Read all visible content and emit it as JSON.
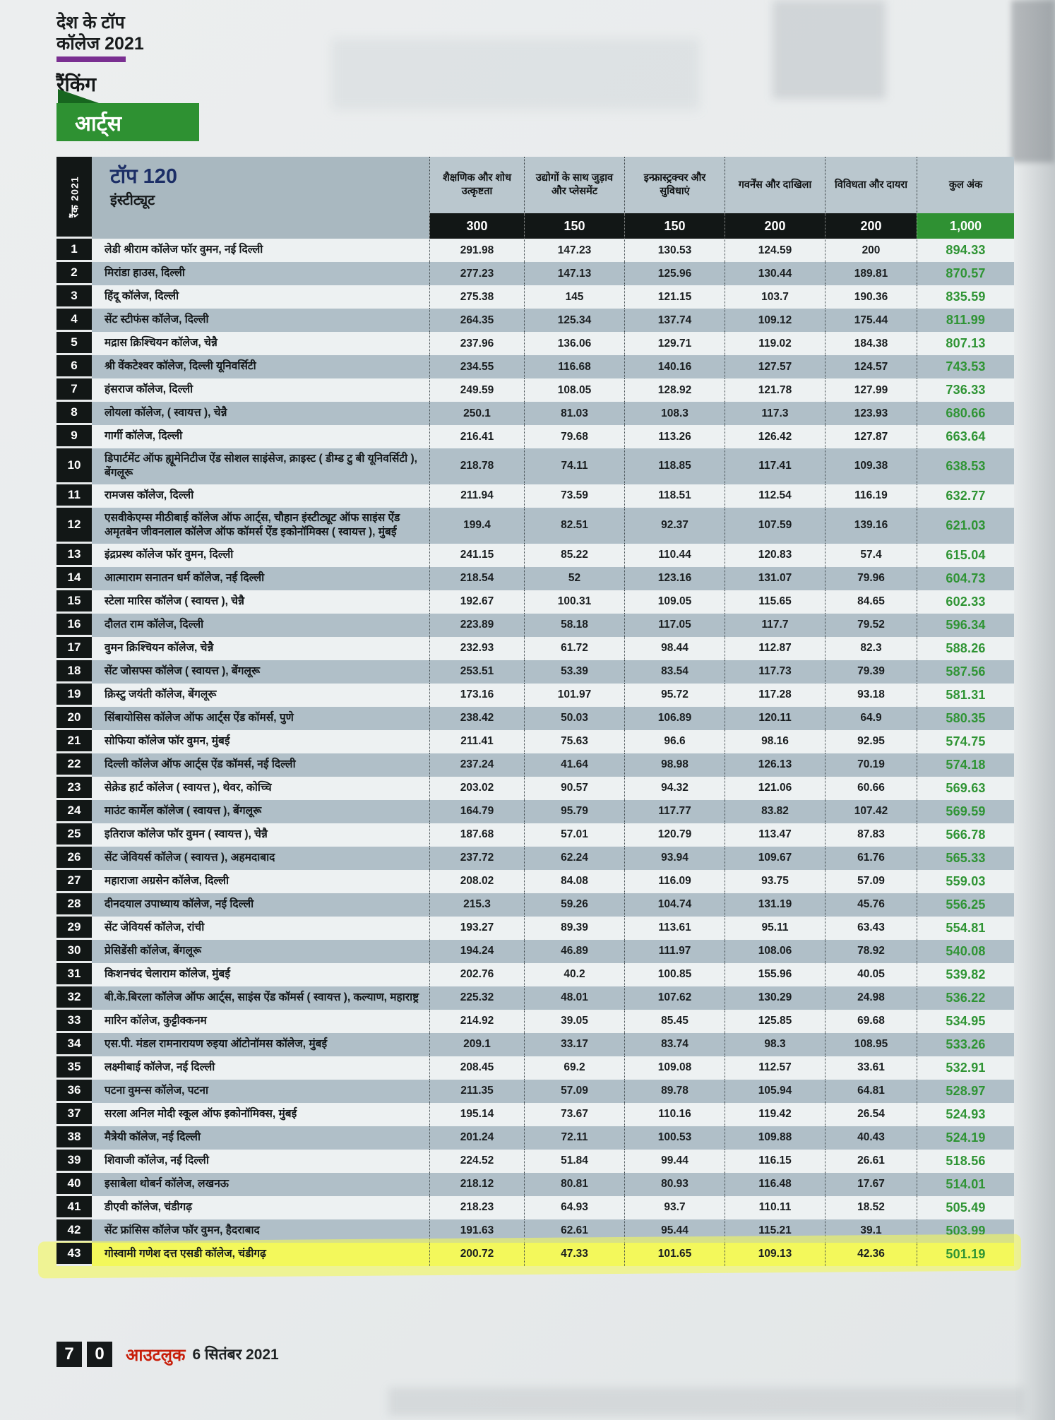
{
  "masthead": {
    "line1": "देश के टॉप",
    "line2": "कॉलेज 2021",
    "line3": "रैंकिंग"
  },
  "category_ribbon": {
    "label": "आर्ट्स"
  },
  "table": {
    "rank_strip_label": "रैंक 2021",
    "title": "टॉप 120",
    "subtitle": "इंस्टीट्यूट",
    "columns": [
      {
        "label": "शैक्षणिक और शोध उत्कृष्टता",
        "weight": "300"
      },
      {
        "label": "उद्योगों के साथ जुड़ाव और प्लेसमेंट",
        "weight": "150"
      },
      {
        "label": "इन्फ्रास्ट्रक्चर और सुविधाएं",
        "weight": "150"
      },
      {
        "label": "गवर्नेंस और दाखिला",
        "weight": "200"
      },
      {
        "label": "विविधता और दायरा",
        "weight": "200"
      },
      {
        "label": "कुल अंक",
        "weight": "1,000"
      }
    ],
    "rows": [
      {
        "rank": "1",
        "name": "लेडी श्रीराम कॉलेज फॉर वुमन, नई दिल्ली",
        "scores": [
          "291.98",
          "147.23",
          "130.53",
          "124.59",
          "200"
        ],
        "total": "894.33",
        "highlighted": false
      },
      {
        "rank": "2",
        "name": "मिरांडा हाउस, दिल्ली",
        "scores": [
          "277.23",
          "147.13",
          "125.96",
          "130.44",
          "189.81"
        ],
        "total": "870.57",
        "highlighted": false
      },
      {
        "rank": "3",
        "name": "हिंदू कॉलेज, दिल्ली",
        "scores": [
          "275.38",
          "145",
          "121.15",
          "103.7",
          "190.36"
        ],
        "total": "835.59",
        "highlighted": false
      },
      {
        "rank": "4",
        "name": "सेंट स्टीफंस कॉलेज, दिल्ली",
        "scores": [
          "264.35",
          "125.34",
          "137.74",
          "109.12",
          "175.44"
        ],
        "total": "811.99",
        "highlighted": false
      },
      {
        "rank": "5",
        "name": "मद्रास क्रिश्चियन कॉलेज, चेन्नै",
        "scores": [
          "237.96",
          "136.06",
          "129.71",
          "119.02",
          "184.38"
        ],
        "total": "807.13",
        "highlighted": false
      },
      {
        "rank": "6",
        "name": "श्री वेंकटेश्वर कॉलेज, दिल्ली यूनिवर्सिटी",
        "scores": [
          "234.55",
          "116.68",
          "140.16",
          "127.57",
          "124.57"
        ],
        "total": "743.53",
        "highlighted": false
      },
      {
        "rank": "7",
        "name": "हंसराज कॉलेज, दिल्ली",
        "scores": [
          "249.59",
          "108.05",
          "128.92",
          "121.78",
          "127.99"
        ],
        "total": "736.33",
        "highlighted": false
      },
      {
        "rank": "8",
        "name": "लोयला कॉलेज, ( स्वायत्त ), चेन्नै",
        "scores": [
          "250.1",
          "81.03",
          "108.3",
          "117.3",
          "123.93"
        ],
        "total": "680.66",
        "highlighted": false
      },
      {
        "rank": "9",
        "name": "गार्गी कॉलेज, दिल्ली",
        "scores": [
          "216.41",
          "79.68",
          "113.26",
          "126.42",
          "127.87"
        ],
        "total": "663.64",
        "highlighted": false
      },
      {
        "rank": "10",
        "name": "डिपार्टमेंट ऑफ ह्यूमेनिटीज ऐंड सोशल साइंसेज, क्राइस्ट ( डीम्ड टु बी यूनिवर्सिटी ), बेंगलूरू",
        "scores": [
          "218.78",
          "74.11",
          "118.85",
          "117.41",
          "109.38"
        ],
        "total": "638.53",
        "highlighted": false
      },
      {
        "rank": "11",
        "name": "रामजस कॉलेज, दिल्ली",
        "scores": [
          "211.94",
          "73.59",
          "118.51",
          "112.54",
          "116.19"
        ],
        "total": "632.77",
        "highlighted": false
      },
      {
        "rank": "12",
        "name": "एसवीकेएम्स मीठीबाई कॉलेज ऑफ आर्ट्स, चौहान इंस्टीट्यूट ऑफ साइंस ऐंड अमृतबेन जीवनलाल कॉलेज ऑफ कॉमर्स ऐंड इकोनॉमिक्स ( स्वायत्त ), मुंबई",
        "scores": [
          "199.4",
          "82.51",
          "92.37",
          "107.59",
          "139.16"
        ],
        "total": "621.03",
        "highlighted": false
      },
      {
        "rank": "13",
        "name": "इंद्रप्रस्थ कॉलेज फॉर वुमन, दिल्ली",
        "scores": [
          "241.15",
          "85.22",
          "110.44",
          "120.83",
          "57.4"
        ],
        "total": "615.04",
        "highlighted": false
      },
      {
        "rank": "14",
        "name": "आत्माराम सनातन धर्म कॉलेज, नई दिल्ली",
        "scores": [
          "218.54",
          "52",
          "123.16",
          "131.07",
          "79.96"
        ],
        "total": "604.73",
        "highlighted": false
      },
      {
        "rank": "15",
        "name": "स्टेला मारिस कॉलेज ( स्वायत्त ), चेन्नै",
        "scores": [
          "192.67",
          "100.31",
          "109.05",
          "115.65",
          "84.65"
        ],
        "total": "602.33",
        "highlighted": false
      },
      {
        "rank": "16",
        "name": "दौलत राम कॉलेज, दिल्ली",
        "scores": [
          "223.89",
          "58.18",
          "117.05",
          "117.7",
          "79.52"
        ],
        "total": "596.34",
        "highlighted": false
      },
      {
        "rank": "17",
        "name": "वुमन क्रिश्चियन कॉलेज, चेन्नै",
        "scores": [
          "232.93",
          "61.72",
          "98.44",
          "112.87",
          "82.3"
        ],
        "total": "588.26",
        "highlighted": false
      },
      {
        "rank": "18",
        "name": "सेंट जोसफ्स कॉलेज ( स्वायत्त ), बेंगलूरू",
        "scores": [
          "253.51",
          "53.39",
          "83.54",
          "117.73",
          "79.39"
        ],
        "total": "587.56",
        "highlighted": false
      },
      {
        "rank": "19",
        "name": "क्रिस्टु जयंती कॉलेज, बेंगलूरू",
        "scores": [
          "173.16",
          "101.97",
          "95.72",
          "117.28",
          "93.18"
        ],
        "total": "581.31",
        "highlighted": false
      },
      {
        "rank": "20",
        "name": "सिंबायोसिस कॉलेज ऑफ आर्ट्स ऐंड कॉमर्स, पुणे",
        "scores": [
          "238.42",
          "50.03",
          "106.89",
          "120.11",
          "64.9"
        ],
        "total": "580.35",
        "highlighted": false
      },
      {
        "rank": "21",
        "name": "सोफिया कॉलेज फॉर वुमन, मुंबई",
        "scores": [
          "211.41",
          "75.63",
          "96.6",
          "98.16",
          "92.95"
        ],
        "total": "574.75",
        "highlighted": false
      },
      {
        "rank": "22",
        "name": "दिल्ली कॉलेज ऑफ आर्ट्स ऐंड कॉमर्स, नई दिल्ली",
        "scores": [
          "237.24",
          "41.64",
          "98.98",
          "126.13",
          "70.19"
        ],
        "total": "574.18",
        "highlighted": false
      },
      {
        "rank": "23",
        "name": "सेक्रेड हार्ट कॉलेज ( स्वायत्त ), थेवर, कोच्चि",
        "scores": [
          "203.02",
          "90.57",
          "94.32",
          "121.06",
          "60.66"
        ],
        "total": "569.63",
        "highlighted": false
      },
      {
        "rank": "24",
        "name": "माउंट कार्मेल कॉलेज ( स्वायत्त ), बेंगलूरू",
        "scores": [
          "164.79",
          "95.79",
          "117.77",
          "83.82",
          "107.42"
        ],
        "total": "569.59",
        "highlighted": false
      },
      {
        "rank": "25",
        "name": "इतिराज कॉलेज फॉर वुमन ( स्वायत्त ), चेन्नै",
        "scores": [
          "187.68",
          "57.01",
          "120.79",
          "113.47",
          "87.83"
        ],
        "total": "566.78",
        "highlighted": false
      },
      {
        "rank": "26",
        "name": "सेंट जेवियर्स कॉलेज ( स्वायत्त ), अहमदाबाद",
        "scores": [
          "237.72",
          "62.24",
          "93.94",
          "109.67",
          "61.76"
        ],
        "total": "565.33",
        "highlighted": false
      },
      {
        "rank": "27",
        "name": "महाराजा अग्रसेन कॉलेज, दिल्ली",
        "scores": [
          "208.02",
          "84.08",
          "116.09",
          "93.75",
          "57.09"
        ],
        "total": "559.03",
        "highlighted": false
      },
      {
        "rank": "28",
        "name": "दीनदयाल उपाध्याय कॉलेज, नई दिल्ली",
        "scores": [
          "215.3",
          "59.26",
          "104.74",
          "131.19",
          "45.76"
        ],
        "total": "556.25",
        "highlighted": false
      },
      {
        "rank": "29",
        "name": "सेंट जेवियर्स कॉलेज, रांची",
        "scores": [
          "193.27",
          "89.39",
          "113.61",
          "95.11",
          "63.43"
        ],
        "total": "554.81",
        "highlighted": false
      },
      {
        "rank": "30",
        "name": "प्रेसिडेंसी कॉलेज, बेंगलूरू",
        "scores": [
          "194.24",
          "46.89",
          "111.97",
          "108.06",
          "78.92"
        ],
        "total": "540.08",
        "highlighted": false
      },
      {
        "rank": "31",
        "name": "किशनचंद चेलाराम कॉलेज, मुंबई",
        "scores": [
          "202.76",
          "40.2",
          "100.85",
          "155.96",
          "40.05"
        ],
        "total": "539.82",
        "highlighted": false
      },
      {
        "rank": "32",
        "name": "बी.के.बिरला कॉलेज ऑफ आर्ट्स, साइंस ऐंड कॉमर्स ( स्वायत्त ), कल्याण, महाराष्ट्र",
        "scores": [
          "225.32",
          "48.01",
          "107.62",
          "130.29",
          "24.98"
        ],
        "total": "536.22",
        "highlighted": false
      },
      {
        "rank": "33",
        "name": "मारिन कॉलेज, कुट्टीक्कनम",
        "scores": [
          "214.92",
          "39.05",
          "85.45",
          "125.85",
          "69.68"
        ],
        "total": "534.95",
        "highlighted": false
      },
      {
        "rank": "34",
        "name": "एस.पी. मंडल रामनारायण रुइया ऑटोनॉमस कॉलेज, मुंबई",
        "scores": [
          "209.1",
          "33.17",
          "83.74",
          "98.3",
          "108.95"
        ],
        "total": "533.26",
        "highlighted": false
      },
      {
        "rank": "35",
        "name": "लक्ष्मीबाई कॉलेज, नई दिल्ली",
        "scores": [
          "208.45",
          "69.2",
          "109.08",
          "112.57",
          "33.61"
        ],
        "total": "532.91",
        "highlighted": false
      },
      {
        "rank": "36",
        "name": "पटना वुमन्स कॉलेज, पटना",
        "scores": [
          "211.35",
          "57.09",
          "89.78",
          "105.94",
          "64.81"
        ],
        "total": "528.97",
        "highlighted": false
      },
      {
        "rank": "37",
        "name": "सरला अनिल मोदी स्कूल ऑफ इकोनॉमिक्स, मुंबई",
        "scores": [
          "195.14",
          "73.67",
          "110.16",
          "119.42",
          "26.54"
        ],
        "total": "524.93",
        "highlighted": false
      },
      {
        "rank": "38",
        "name": "मैत्रेयी कॉलेज, नई दिल्ली",
        "scores": [
          "201.24",
          "72.11",
          "100.53",
          "109.88",
          "40.43"
        ],
        "total": "524.19",
        "highlighted": false
      },
      {
        "rank": "39",
        "name": "शिवाजी कॉलेज, नई दिल्ली",
        "scores": [
          "224.52",
          "51.84",
          "99.44",
          "116.15",
          "26.61"
        ],
        "total": "518.56",
        "highlighted": false
      },
      {
        "rank": "40",
        "name": "इसाबेला थोबर्न कॉलेज, लखनऊ",
        "scores": [
          "218.12",
          "80.81",
          "80.93",
          "116.48",
          "17.67"
        ],
        "total": "514.01",
        "highlighted": false
      },
      {
        "rank": "41",
        "name": "डीएवी कॉलेज, चंडीगढ़",
        "scores": [
          "218.23",
          "64.93",
          "93.7",
          "110.11",
          "18.52"
        ],
        "total": "505.49",
        "highlighted": false
      },
      {
        "rank": "42",
        "name": "सेंट फ्रांसिस कॉलेज फॉर वुमन, हैदराबाद",
        "scores": [
          "191.63",
          "62.61",
          "95.44",
          "115.21",
          "39.1"
        ],
        "total": "503.99",
        "highlighted": false
      },
      {
        "rank": "43",
        "name": "गोस्वामी गणेश दत्त एसडी कॉलेज, चंडीगढ़",
        "scores": [
          "200.72",
          "47.33",
          "101.65",
          "109.13",
          "42.36"
        ],
        "total": "501.19",
        "highlighted": true
      }
    ]
  },
  "footer": {
    "page_digits": [
      "7",
      "0"
    ],
    "magazine": "आउटलुक",
    "date": "6 सितंबर 2021"
  },
  "colors": {
    "brand_green": "#2e9132",
    "fold_green": "#17661f",
    "total_green": "#2f9434",
    "purple": "#7a2f91",
    "black_strip": "#121716",
    "header_gray": "#a9b8c0",
    "header_cell_gray": "#bac7ce",
    "row_light": "#edf1f2",
    "row_gray": "#b0bfc8",
    "highlight_yellow": "#f2f75e",
    "magazine_red": "#c81e0a"
  }
}
